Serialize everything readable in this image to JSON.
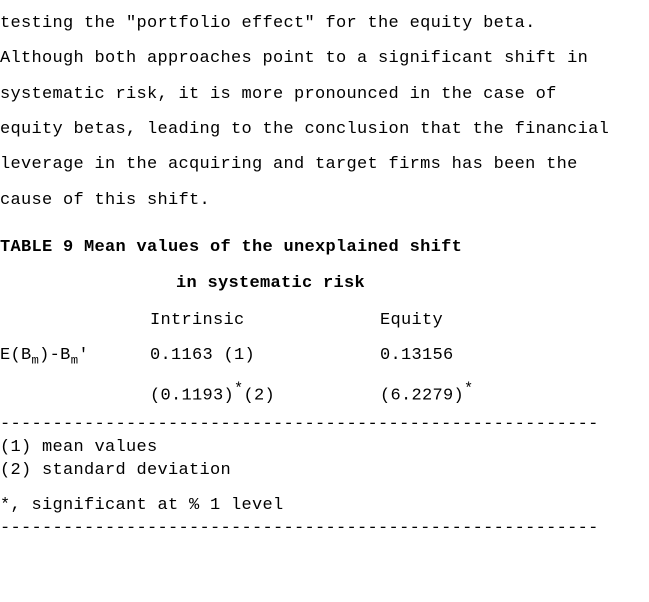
{
  "text_color": "#000000",
  "background_color": "#ffffff",
  "font_family": "Courier New, monospace",
  "font_size_pt": 12,
  "line_spacing": 2.08,
  "paragraph": {
    "line1": "testing the \"portfolio effect\" for the equity beta.",
    "line2": "Although both approaches point to a significant shift in",
    "line3": "systematic risk, it is more pronounced in the case of",
    "line4": "equity betas, leading to the conclusion that the financial",
    "line5": "leverage in the acquiring and target firms has been the",
    "line6": "cause of this shift."
  },
  "table": {
    "title_line1": "TABLE 9 Mean values of the unexplained shift",
    "title_line2": "in systematic risk",
    "col_headers": {
      "intrinsic": "Intrinsic",
      "equity": "Equity"
    },
    "row_label_prefix": "E(B",
    "row_label_sub1": "m",
    "row_label_mid": ")-B",
    "row_label_sub2": "m",
    "row_label_suffix": "'",
    "row1": {
      "intrinsic": "0.1163 (1)",
      "equity": "0.13156"
    },
    "row2": {
      "intrinsic_a": "(0.1193)",
      "intrinsic_star": "*",
      "intrinsic_b": "(2)",
      "equity_a": "(6.2279)",
      "equity_star": "*"
    }
  },
  "notes": {
    "dashes": "---------------------------------------------------------",
    "n1": "(1) mean values",
    "n2": "(2) standard deviation",
    "sig_prefix": " *, significant at % 1 ",
    "sig_word": "level"
  }
}
